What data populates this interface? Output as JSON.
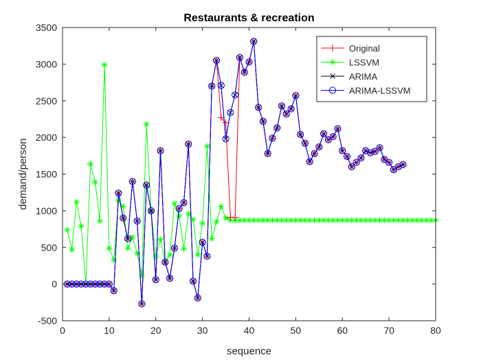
{
  "chart_data": {
    "type": "line",
    "title": "Restaurants & recreation",
    "xlabel": "sequence",
    "ylabel": "demand/person",
    "xlim": [
      0,
      80
    ],
    "ylim": [
      -500,
      3500
    ],
    "xticks": [
      0,
      10,
      20,
      30,
      40,
      50,
      60,
      70,
      80
    ],
    "yticks": [
      -500,
      0,
      500,
      1000,
      1500,
      2000,
      2500,
      3000,
      3500
    ],
    "xtick_labels": [
      "0",
      "10",
      "20",
      "30",
      "40",
      "50",
      "60",
      "70",
      "80"
    ],
    "ytick_labels": [
      "-500",
      "0",
      "500",
      "1000",
      "1500",
      "2000",
      "2500",
      "3000",
      "3500"
    ],
    "legend_position": "top-right",
    "grid": false,
    "series": [
      {
        "name": "LSSVM",
        "color": "#00ff00",
        "marker": "star",
        "x": [
          1,
          2,
          3,
          4,
          5,
          6,
          7,
          8,
          9,
          10,
          11,
          12,
          13,
          14,
          15,
          16,
          17,
          18,
          19,
          20,
          21,
          22,
          23,
          24,
          25,
          26,
          27,
          28,
          29,
          30,
          31,
          32,
          33,
          34,
          35,
          36,
          37,
          38,
          39,
          40,
          41,
          42,
          43,
          44,
          45,
          46,
          47,
          48,
          49,
          50,
          51,
          52,
          53,
          54,
          55,
          56,
          57,
          58,
          59,
          60,
          61,
          62,
          63,
          64,
          65,
          66,
          67,
          68,
          69,
          70,
          71,
          72,
          73,
          74,
          75,
          76,
          77,
          78,
          79,
          80
        ],
        "y": [
          740,
          470,
          1120,
          790,
          0,
          1640,
          1390,
          860,
          2990,
          490,
          330,
          1140,
          1060,
          490,
          640,
          420,
          120,
          2180,
          990,
          380,
          610,
          300,
          400,
          1100,
          930,
          480,
          960,
          880,
          400,
          830,
          1880,
          620,
          850,
          1060,
          900,
          870,
          870,
          870,
          870,
          870,
          870,
          870,
          870,
          870,
          870,
          870,
          870,
          870,
          870,
          870,
          870,
          870,
          870,
          870,
          870,
          870,
          870,
          870,
          870,
          870,
          870,
          870,
          870,
          870,
          870,
          870,
          870,
          870,
          870,
          870,
          870,
          870,
          870,
          870,
          870,
          870,
          870,
          870,
          870,
          870
        ]
      },
      {
        "name": "Original",
        "color": "#ff0000",
        "marker": "plus",
        "x": [
          1,
          2,
          3,
          4,
          5,
          6,
          7,
          8,
          9,
          10,
          11,
          12,
          13,
          14,
          15,
          16,
          17,
          18,
          19,
          20,
          21,
          22,
          23,
          24,
          25,
          26,
          27,
          28,
          29,
          30,
          31,
          32,
          33,
          34,
          35,
          36,
          37,
          38,
          39,
          40,
          41,
          42,
          43,
          44,
          45,
          46,
          47,
          48,
          49,
          50,
          51,
          52,
          53,
          54,
          55,
          56,
          57,
          58,
          59,
          60,
          61,
          62,
          63,
          64,
          65,
          66,
          67,
          68,
          69,
          70,
          71,
          72,
          73
        ],
        "y": [
          0,
          0,
          0,
          0,
          0,
          0,
          0,
          0,
          0,
          0,
          -90,
          1240,
          900,
          620,
          1400,
          860,
          -270,
          1350,
          1000,
          60,
          1820,
          300,
          80,
          490,
          1030,
          1110,
          1910,
          40,
          -190,
          570,
          380,
          2700,
          3050,
          2270,
          2200,
          910,
          910,
          3090,
          2890,
          3030,
          3310,
          2410,
          2220,
          1780,
          1990,
          2130,
          2430,
          2320,
          2390,
          2570,
          2040,
          1920,
          1670,
          1780,
          1870,
          2050,
          1970,
          2010,
          2120,
          1820,
          1740,
          1600,
          1660,
          1720,
          1820,
          1790,
          1810,
          1860,
          1700,
          1660,
          1560,
          1600,
          1630
        ]
      },
      {
        "name": "ARIMA",
        "color": "#000000",
        "marker": "x",
        "x": [
          1,
          2,
          3,
          4,
          5,
          6,
          7,
          8,
          9,
          10,
          11,
          12,
          13,
          14,
          15,
          16,
          17,
          18,
          19,
          20,
          21,
          22,
          23,
          24,
          25,
          26,
          27,
          28,
          29,
          30,
          31,
          32,
          33,
          34,
          35,
          36,
          37,
          38,
          39,
          40,
          41,
          42,
          43,
          44,
          45,
          46,
          47,
          48,
          49,
          50,
          51,
          52,
          53,
          54,
          55,
          56,
          57,
          58,
          59,
          60,
          61,
          62,
          63,
          64,
          65,
          66,
          67,
          68,
          69,
          70,
          71,
          72,
          73
        ],
        "y": [
          0,
          0,
          0,
          0,
          0,
          0,
          0,
          0,
          0,
          0,
          -90,
          1240,
          900,
          620,
          1400,
          860,
          -270,
          1350,
          1000,
          60,
          1820,
          300,
          80,
          490,
          1030,
          1110,
          1910,
          40,
          -190,
          570,
          380,
          2700,
          3050,
          2710,
          1980,
          2340,
          2580,
          3090,
          2890,
          3030,
          3310,
          2410,
          2220,
          1780,
          1990,
          2130,
          2430,
          2320,
          2390,
          2570,
          2040,
          1920,
          1670,
          1780,
          1870,
          2050,
          1970,
          2010,
          2120,
          1820,
          1740,
          1600,
          1660,
          1720,
          1820,
          1790,
          1810,
          1860,
          1700,
          1660,
          1560,
          1600,
          1630
        ]
      },
      {
        "name": "ARIMA-LSSVM",
        "color": "#0000ff",
        "marker": "circle",
        "x": [
          1,
          2,
          3,
          4,
          5,
          6,
          7,
          8,
          9,
          10,
          11,
          12,
          13,
          14,
          15,
          16,
          17,
          18,
          19,
          20,
          21,
          22,
          23,
          24,
          25,
          26,
          27,
          28,
          29,
          30,
          31,
          32,
          33,
          34,
          35,
          36,
          37,
          38,
          39,
          40,
          41,
          42,
          43,
          44,
          45,
          46,
          47,
          48,
          49,
          50,
          51,
          52,
          53,
          54,
          55,
          56,
          57,
          58,
          59,
          60,
          61,
          62,
          63,
          64,
          65,
          66,
          67,
          68,
          69,
          70,
          71,
          72,
          73
        ],
        "y": [
          0,
          0,
          0,
          0,
          0,
          0,
          0,
          0,
          0,
          0,
          -90,
          1240,
          900,
          620,
          1400,
          860,
          -270,
          1350,
          1000,
          60,
          1820,
          300,
          80,
          490,
          1030,
          1110,
          1910,
          40,
          -190,
          570,
          380,
          2700,
          3050,
          2710,
          1980,
          2340,
          2580,
          3090,
          2890,
          3030,
          3310,
          2410,
          2220,
          1780,
          1990,
          2130,
          2430,
          2320,
          2390,
          2570,
          2040,
          1920,
          1670,
          1780,
          1870,
          2050,
          1970,
          2010,
          2120,
          1820,
          1740,
          1600,
          1660,
          1720,
          1820,
          1790,
          1810,
          1860,
          1700,
          1660,
          1560,
          1600,
          1630
        ]
      }
    ],
    "legend_order": [
      "Original",
      "LSSVM",
      "ARIMA",
      "ARIMA-LSSVM"
    ]
  }
}
